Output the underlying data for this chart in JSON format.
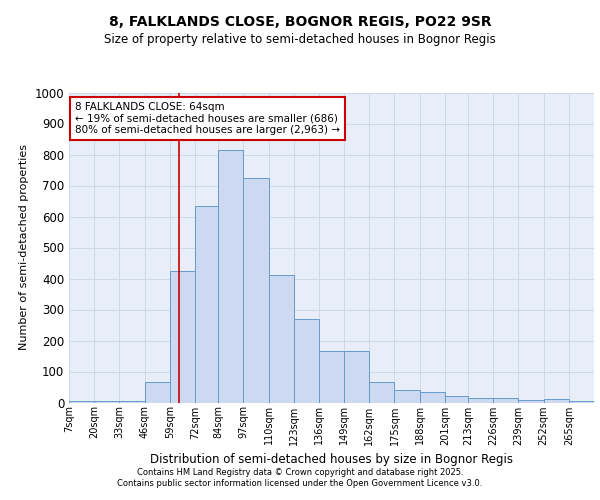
{
  "title1": "8, FALKLANDS CLOSE, BOGNOR REGIS, PO22 9SR",
  "title2": "Size of property relative to semi-detached houses in Bognor Regis",
  "xlabel": "Distribution of semi-detached houses by size in Bognor Regis",
  "ylabel": "Number of semi-detached properties",
  "bin_labels": [
    "7sqm",
    "20sqm",
    "33sqm",
    "46sqm",
    "59sqm",
    "72sqm",
    "84sqm",
    "97sqm",
    "110sqm",
    "123sqm",
    "136sqm",
    "149sqm",
    "162sqm",
    "175sqm",
    "188sqm",
    "201sqm",
    "213sqm",
    "226sqm",
    "239sqm",
    "252sqm",
    "265sqm"
  ],
  "bin_edges": [
    7,
    20,
    33,
    46,
    59,
    72,
    84,
    97,
    110,
    123,
    136,
    149,
    162,
    175,
    188,
    201,
    213,
    226,
    239,
    252,
    265,
    278
  ],
  "counts": [
    5,
    5,
    5,
    65,
    425,
    635,
    815,
    725,
    410,
    270,
    165,
    165,
    65,
    40,
    35,
    20,
    15,
    15,
    8,
    10,
    5
  ],
  "bar_facecolor": "#ccd9f0",
  "bar_edgecolor": "#6699cc",
  "grid_color": "#d0d8e8",
  "background_color": "#e8eef8",
  "vline_x": 64,
  "vline_color": "#cc0000",
  "annotation_title": "8 FALKLANDS CLOSE: 64sqm",
  "annotation_line1": "← 19% of semi-detached houses are smaller (686)",
  "annotation_line2": "80% of semi-detached houses are larger (2,963) →",
  "annotation_box_edgecolor": "#cc0000",
  "ylim": [
    0,
    1000
  ],
  "yticks": [
    0,
    100,
    200,
    300,
    400,
    500,
    600,
    700,
    800,
    900,
    1000
  ],
  "footer_line1": "Contains HM Land Registry data © Crown copyright and database right 2025.",
  "footer_line2": "Contains public sector information licensed under the Open Government Licence v3.0."
}
